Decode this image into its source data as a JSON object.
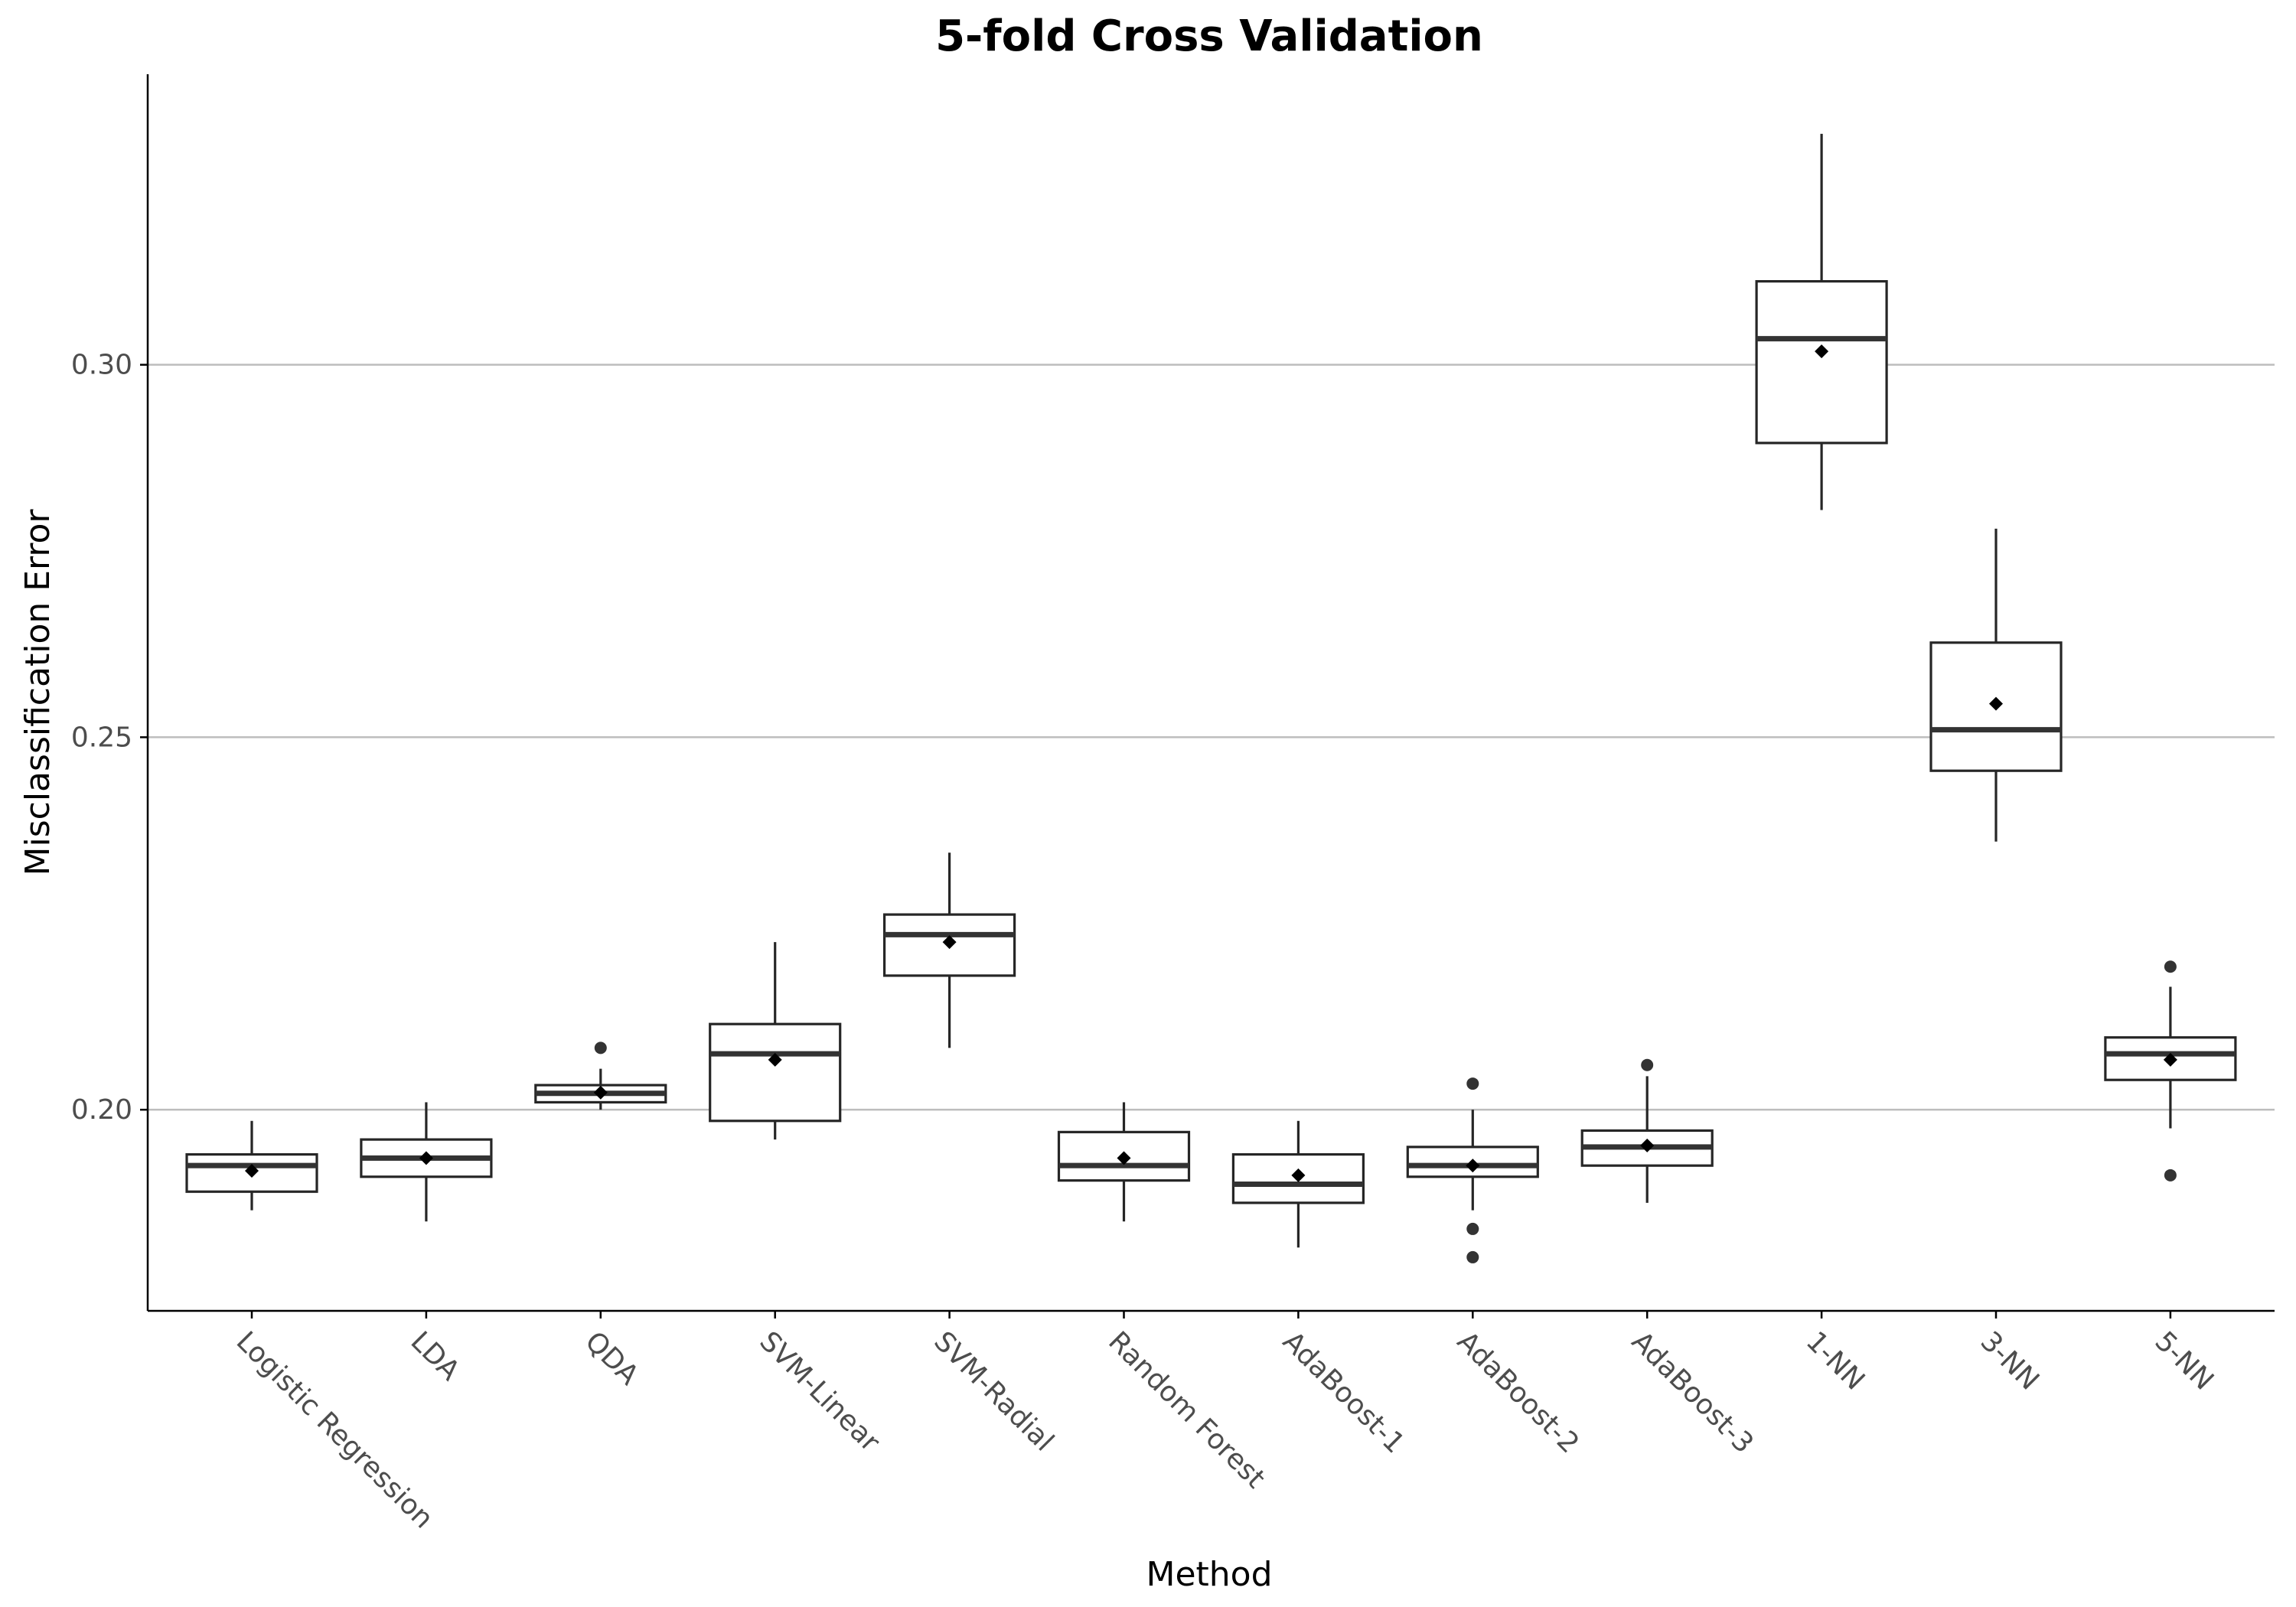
{
  "chart_data": {
    "type": "boxplot",
    "title": "5-fold Cross Validation",
    "xlabel": "Method",
    "ylabel": "Misclassification Error",
    "ylim": [
      0.173,
      0.339
    ],
    "yticks": [
      0.2,
      0.25,
      0.3
    ],
    "ytick_labels": [
      "0.20",
      "0.25",
      "0.30"
    ],
    "grid": "horizontal major",
    "legend": "none",
    "categories": [
      "Logistic Regression",
      "LDA",
      "QDA",
      "SVM-Linear",
      "SVM-Radial",
      "Random Forest",
      "AdaBoost-1",
      "AdaBoost-2",
      "AdaBoost-3",
      "1-NN",
      "3-NN",
      "5-NN"
    ],
    "boxes": [
      {
        "whisker_low": 0.1865,
        "q1": 0.189,
        "median": 0.1925,
        "q3": 0.194,
        "whisker_high": 0.1985,
        "mean": 0.1918,
        "outliers": []
      },
      {
        "whisker_low": 0.185,
        "q1": 0.191,
        "median": 0.1935,
        "q3": 0.196,
        "whisker_high": 0.201,
        "mean": 0.1935,
        "outliers": []
      },
      {
        "whisker_low": 0.2,
        "q1": 0.201,
        "median": 0.2022,
        "q3": 0.2033,
        "whisker_high": 0.2055,
        "mean": 0.2023,
        "outliers": [
          0.2083
        ]
      },
      {
        "whisker_low": 0.196,
        "q1": 0.1985,
        "median": 0.2075,
        "q3": 0.2115,
        "whisker_high": 0.2225,
        "mean": 0.2067,
        "outliers": []
      },
      {
        "whisker_low": 0.2083,
        "q1": 0.218,
        "median": 0.2235,
        "q3": 0.2262,
        "whisker_high": 0.2345,
        "mean": 0.2225,
        "outliers": []
      },
      {
        "whisker_low": 0.185,
        "q1": 0.1905,
        "median": 0.1925,
        "q3": 0.197,
        "whisker_high": 0.201,
        "mean": 0.1935,
        "outliers": []
      },
      {
        "whisker_low": 0.1815,
        "q1": 0.1875,
        "median": 0.19,
        "q3": 0.194,
        "whisker_high": 0.1985,
        "mean": 0.1912,
        "outliers": []
      },
      {
        "whisker_low": 0.1865,
        "q1": 0.191,
        "median": 0.1925,
        "q3": 0.195,
        "whisker_high": 0.2,
        "mean": 0.1925,
        "outliers": [
          0.2035,
          0.184,
          0.1802
        ]
      },
      {
        "whisker_low": 0.1875,
        "q1": 0.1925,
        "median": 0.195,
        "q3": 0.1972,
        "whisker_high": 0.2045,
        "mean": 0.1952,
        "outliers": [
          0.206
        ]
      },
      {
        "whisker_low": 0.2805,
        "q1": 0.2895,
        "median": 0.3035,
        "q3": 0.3112,
        "whisker_high": 0.331,
        "mean": 0.3018,
        "outliers": []
      },
      {
        "whisker_low": 0.236,
        "q1": 0.2455,
        "median": 0.251,
        "q3": 0.2627,
        "whisker_high": 0.278,
        "mean": 0.2545,
        "outliers": []
      },
      {
        "whisker_low": 0.1975,
        "q1": 0.204,
        "median": 0.2075,
        "q3": 0.2097,
        "whisker_high": 0.2165,
        "mean": 0.2067,
        "outliers": [
          0.2192,
          0.1912
        ]
      }
    ]
  }
}
